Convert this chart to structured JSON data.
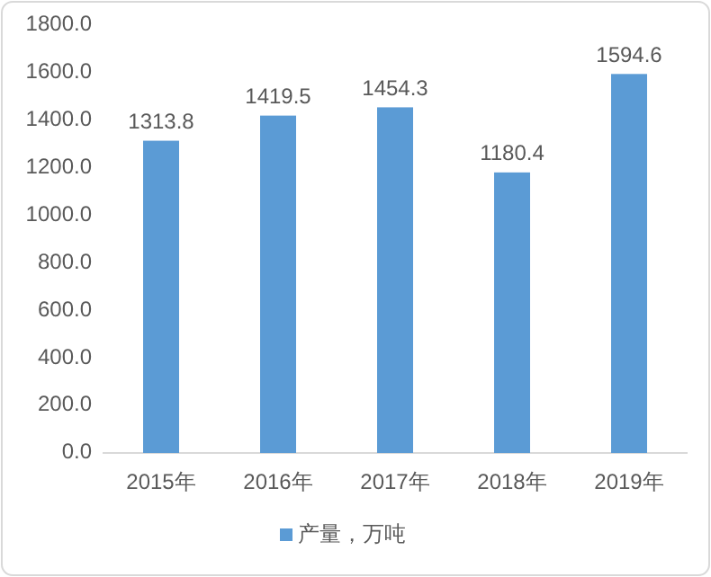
{
  "chart_data": {
    "type": "bar",
    "categories": [
      "2015年",
      "2016年",
      "2017年",
      "2018年",
      "2019年"
    ],
    "series": [
      {
        "name": "产量，万吨",
        "color": "#5b9bd5",
        "values": [
          1313.8,
          1419.5,
          1454.3,
          1180.4,
          1594.6
        ]
      }
    ],
    "ylim": [
      0,
      1800
    ],
    "yticks": [
      {
        "value": 0,
        "label": "0.0"
      },
      {
        "value": 200,
        "label": "200.0"
      },
      {
        "value": 400,
        "label": "400.0"
      },
      {
        "value": 600,
        "label": "600.0"
      },
      {
        "value": 800,
        "label": "800.0"
      },
      {
        "value": 1000,
        "label": "1000.0"
      },
      {
        "value": 1200,
        "label": "1200.0"
      },
      {
        "value": 1400,
        "label": "1400.0"
      },
      {
        "value": 1600,
        "label": "1600.0"
      },
      {
        "value": 1800,
        "label": "1800.0"
      }
    ],
    "data_labels": true,
    "grid": false,
    "legend": "bottom"
  }
}
